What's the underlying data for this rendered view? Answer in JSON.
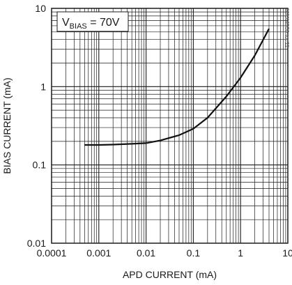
{
  "chart_data": {
    "type": "line",
    "xscale": "log",
    "yscale": "log",
    "xlim": [
      0.0001,
      10
    ],
    "ylim": [
      0.01,
      10
    ],
    "xlabel": "APD CURRENT (mA)",
    "ylabel": "BIAS CURRENT (mA)",
    "xticks": [
      "0.0001",
      "0.001",
      "0.01",
      "0.1",
      "1",
      "10"
    ],
    "yticks": [
      "0.01",
      "0.1",
      "1",
      "10"
    ],
    "grid": true,
    "annotation": {
      "prefix": "V",
      "sub": "BIAS",
      "suffix": " = 70V"
    },
    "side_code": "MAX4006 toc11",
    "series": [
      {
        "x": [
          0.0005,
          0.001,
          0.002,
          0.005,
          0.01,
          0.02,
          0.05,
          0.1,
          0.2,
          0.5,
          1,
          2,
          4
        ],
        "y": [
          0.18,
          0.18,
          0.182,
          0.186,
          0.19,
          0.205,
          0.24,
          0.29,
          0.4,
          0.75,
          1.3,
          2.5,
          5.5
        ]
      }
    ]
  }
}
